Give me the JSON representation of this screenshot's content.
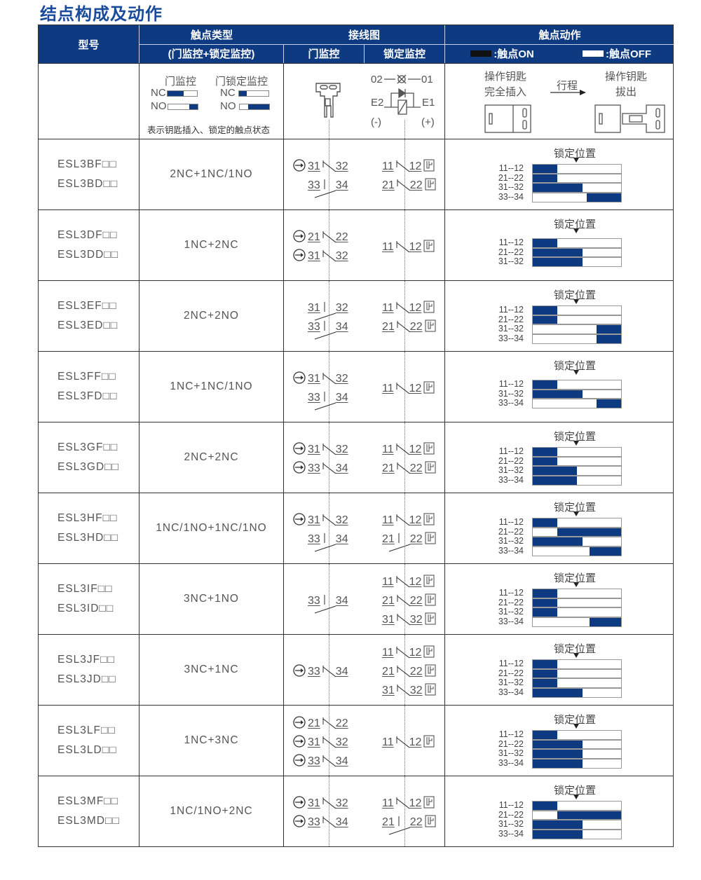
{
  "title": "结点构成及动作",
  "colors": {
    "accent": "#0d3a80",
    "title": "#1a4a9a"
  },
  "header": {
    "model": "型号",
    "contact_type": "触点类型",
    "contact_type_sub": "(门监控+锁定监控)",
    "wiring": "接线图",
    "door_monitor": "门监控",
    "lock_monitor": "锁定监控",
    "action": "触点动作",
    "on_label": ":触点ON",
    "off_label": ":触点OFF"
  },
  "legend": {
    "door_monitor": "门监控",
    "lock_monitor": "门锁定监控",
    "nc": "NC",
    "no": "NO",
    "note": "表示钥匙插入、锁定的触点状态",
    "lamp_left": "02",
    "lamp_right": "01",
    "e2": "E2",
    "e1": "E1",
    "minus": "(-)",
    "plus": "(+)",
    "inserted": [
      "操作钥匙",
      "完全插入"
    ],
    "stroke": "行程",
    "removed": [
      "操作钥匙",
      "拔出"
    ]
  },
  "lock_position": "锁定位置",
  "rows": [
    {
      "models": [
        "ESL3BF□□",
        "ESL3BD□□"
      ],
      "type": "2NC+1NC/1NO",
      "door": [
        {
          "a": "31",
          "b": "32",
          "k": "nc",
          "pos": true
        },
        {
          "a": "33",
          "b": "34",
          "k": "no",
          "pos": false
        }
      ],
      "lock": [
        {
          "a": "11",
          "b": "12",
          "k": "nc"
        },
        {
          "a": "21",
          "b": "22",
          "k": "nc"
        }
      ],
      "timing": [
        {
          "label": "11--12",
          "on": [
            [
              0,
              0.28
            ]
          ]
        },
        {
          "label": "21--22",
          "on": [
            [
              0,
              0.28
            ]
          ]
        },
        {
          "label": "31--32",
          "on": [
            [
              0,
              0.56
            ]
          ]
        },
        {
          "label": "33--34",
          "on": [
            [
              0.61,
              1
            ]
          ]
        }
      ]
    },
    {
      "models": [
        "ESL3DF□□",
        "ESL3DD□□"
      ],
      "type": "1NC+2NC",
      "door": [
        {
          "a": "21",
          "b": "22",
          "k": "nc",
          "pos": true
        },
        {
          "a": "31",
          "b": "32",
          "k": "nc",
          "pos": true
        }
      ],
      "lock": [
        {
          "a": "11",
          "b": "12",
          "k": "nc"
        }
      ],
      "timing": [
        {
          "label": "11--12",
          "on": [
            [
              0,
              0.28
            ]
          ]
        },
        {
          "label": "21--22",
          "on": [
            [
              0,
              0.56
            ]
          ]
        },
        {
          "label": "31--32",
          "on": [
            [
              0,
              0.56
            ]
          ]
        }
      ]
    },
    {
      "models": [
        "ESL3EF□□",
        "ESL3ED□□"
      ],
      "type": "2NC+2NO",
      "door": [
        {
          "a": "31",
          "b": "32",
          "k": "no",
          "pos": false
        },
        {
          "a": "33",
          "b": "34",
          "k": "no",
          "pos": false
        }
      ],
      "lock": [
        {
          "a": "11",
          "b": "12",
          "k": "nc"
        },
        {
          "a": "21",
          "b": "22",
          "k": "nc"
        }
      ],
      "timing": [
        {
          "label": "11--12",
          "on": [
            [
              0,
              0.28
            ]
          ]
        },
        {
          "label": "21--22",
          "on": [
            [
              0,
              0.28
            ]
          ]
        },
        {
          "label": "31--32",
          "on": [
            [
              0.72,
              1
            ]
          ]
        },
        {
          "label": "33--34",
          "on": [
            [
              0.72,
              1
            ]
          ]
        }
      ]
    },
    {
      "models": [
        "ESL3FF□□",
        "ESL3FD□□"
      ],
      "type": "1NC+1NC/1NO",
      "door": [
        {
          "a": "31",
          "b": "32",
          "k": "nc",
          "pos": true
        },
        {
          "a": "33",
          "b": "34",
          "k": "no",
          "pos": false
        }
      ],
      "lock": [
        {
          "a": "11",
          "b": "12",
          "k": "nc"
        }
      ],
      "timing": [
        {
          "label": "11--12",
          "on": [
            [
              0,
              0.28
            ]
          ]
        },
        {
          "label": "31--32",
          "on": [
            [
              0,
              0.56
            ]
          ]
        },
        {
          "label": "33--34",
          "on": [
            [
              0.72,
              1
            ]
          ]
        }
      ]
    },
    {
      "models": [
        "ESL3GF□□",
        "ESL3GD□□"
      ],
      "type": "2NC+2NC",
      "door": [
        {
          "a": "31",
          "b": "32",
          "k": "nc",
          "pos": true
        },
        {
          "a": "33",
          "b": "34",
          "k": "nc",
          "pos": true
        }
      ],
      "lock": [
        {
          "a": "11",
          "b": "12",
          "k": "nc"
        },
        {
          "a": "21",
          "b": "22",
          "k": "nc"
        }
      ],
      "timing": [
        {
          "label": "11--12",
          "on": [
            [
              0,
              0.28
            ]
          ]
        },
        {
          "label": "21--22",
          "on": [
            [
              0,
              0.28
            ]
          ]
        },
        {
          "label": "31--32",
          "on": [
            [
              0,
              0.5
            ]
          ]
        },
        {
          "label": "33--34",
          "on": [
            [
              0,
              0.5
            ]
          ]
        }
      ]
    },
    {
      "models": [
        "ESL3HF□□",
        "ESL3HD□□"
      ],
      "type": "1NC/1NO+1NC/1NO",
      "door": [
        {
          "a": "31",
          "b": "32",
          "k": "nc",
          "pos": true
        },
        {
          "a": "33",
          "b": "34",
          "k": "no",
          "pos": false
        }
      ],
      "lock": [
        {
          "a": "11",
          "b": "12",
          "k": "nc"
        },
        {
          "a": "21",
          "b": "22",
          "k": "no"
        }
      ],
      "timing": [
        {
          "label": "11--12",
          "on": [
            [
              0,
              0.28
            ]
          ]
        },
        {
          "label": "21--22",
          "on": [
            [
              0.28,
              1
            ]
          ]
        },
        {
          "label": "31--32",
          "on": [
            [
              0,
              0.56
            ]
          ]
        },
        {
          "label": "33--34",
          "on": [
            [
              0.64,
              1
            ]
          ]
        }
      ]
    },
    {
      "models": [
        "ESL3IF□□",
        "ESL3ID□□"
      ],
      "type": "3NC+1NO",
      "door": [
        {
          "a": "33",
          "b": "34",
          "k": "no",
          "pos": false
        }
      ],
      "lock": [
        {
          "a": "11",
          "b": "12",
          "k": "nc"
        },
        {
          "a": "21",
          "b": "22",
          "k": "nc"
        },
        {
          "a": "31",
          "b": "32",
          "k": "nc"
        }
      ],
      "timing": [
        {
          "label": "11--12",
          "on": [
            [
              0,
              0.28
            ]
          ]
        },
        {
          "label": "21--22",
          "on": [
            [
              0,
              0.28
            ]
          ]
        },
        {
          "label": "31--32",
          "on": [
            [
              0,
              0.28
            ]
          ]
        },
        {
          "label": "33--34",
          "on": [
            [
              0.64,
              1
            ]
          ]
        }
      ]
    },
    {
      "models": [
        "ESL3JF□□",
        "ESL3JD□□"
      ],
      "type": "3NC+1NC",
      "door": [
        {
          "a": "33",
          "b": "34",
          "k": "nc",
          "pos": true
        }
      ],
      "lock": [
        {
          "a": "11",
          "b": "12",
          "k": "nc"
        },
        {
          "a": "21",
          "b": "22",
          "k": "nc"
        },
        {
          "a": "31",
          "b": "32",
          "k": "nc"
        }
      ],
      "timing": [
        {
          "label": "11--12",
          "on": [
            [
              0,
              0.28
            ]
          ]
        },
        {
          "label": "21--22",
          "on": [
            [
              0,
              0.28
            ]
          ]
        },
        {
          "label": "31--32",
          "on": [
            [
              0,
              0.28
            ]
          ]
        },
        {
          "label": "33--34",
          "on": [
            [
              0,
              0.56
            ]
          ]
        }
      ]
    },
    {
      "models": [
        "ESL3LF□□",
        "ESL3LD□□"
      ],
      "type": "1NC+3NC",
      "door": [
        {
          "a": "21",
          "b": "22",
          "k": "nc",
          "pos": true
        },
        {
          "a": "31",
          "b": "32",
          "k": "nc",
          "pos": true
        },
        {
          "a": "33",
          "b": "34",
          "k": "nc",
          "pos": true
        }
      ],
      "lock": [
        {
          "a": "11",
          "b": "12",
          "k": "nc"
        }
      ],
      "timing": [
        {
          "label": "11--12",
          "on": [
            [
              0,
              0.28
            ]
          ]
        },
        {
          "label": "21--22",
          "on": [
            [
              0,
              0.56
            ]
          ]
        },
        {
          "label": "31--32",
          "on": [
            [
              0,
              0.56
            ]
          ]
        },
        {
          "label": "33--34",
          "on": [
            [
              0,
              0.56
            ]
          ]
        }
      ]
    },
    {
      "models": [
        "ESL3MF□□",
        "ESL3MD□□"
      ],
      "type": "1NC/1NO+2NC",
      "door": [
        {
          "a": "31",
          "b": "32",
          "k": "nc",
          "pos": true
        },
        {
          "a": "33",
          "b": "34",
          "k": "nc",
          "pos": true
        }
      ],
      "lock": [
        {
          "a": "11",
          "b": "12",
          "k": "nc"
        },
        {
          "a": "21",
          "b": "22",
          "k": "no"
        }
      ],
      "timing": [
        {
          "label": "11--12",
          "on": [
            [
              0,
              0.28
            ]
          ]
        },
        {
          "label": "21--22",
          "on": [
            [
              0.28,
              1
            ]
          ]
        },
        {
          "label": "31--32",
          "on": [
            [
              0,
              0.56
            ]
          ]
        },
        {
          "label": "33--34",
          "on": [
            [
              0,
              0.56
            ]
          ]
        }
      ]
    }
  ]
}
